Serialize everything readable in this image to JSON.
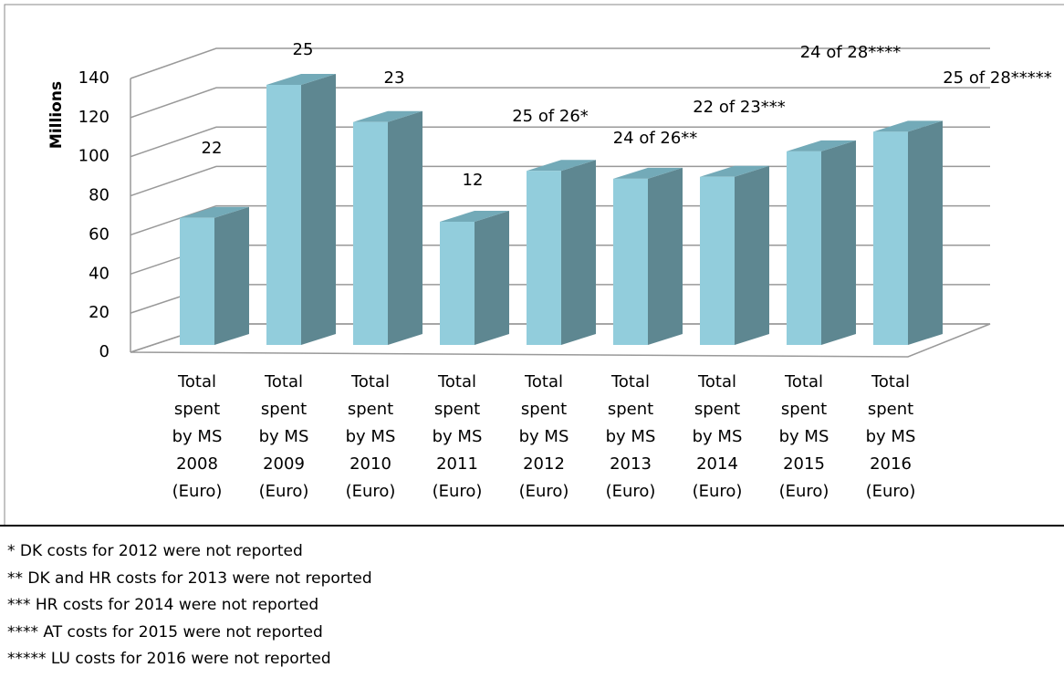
{
  "chart_data": {
    "type": "bar3d",
    "y_label": "Millions",
    "categories": [
      "Total spent by MS 2008 (Euro)",
      "Total spent by MS 2009 (Euro)",
      "Total spent by MS 2010 (Euro)",
      "Total spent by MS 2011 (Euro)",
      "Total spent by MS 2012 (Euro)",
      "Total spent by MS 2013 (Euro)",
      "Total spent by MS 2014 (Euro)",
      "Total spent by MS 2015 (Euro)",
      "Total spent by MS 2016 (Euro)"
    ],
    "values": [
      65,
      133,
      114,
      63,
      89,
      85,
      86,
      99,
      109
    ],
    "bar_annotations": [
      "22",
      "25",
      "23",
      "12",
      "25 of 26*",
      "24 of 26**",
      "22 of 23***",
      "24 of 28****",
      "25 of 28*****"
    ],
    "color": "#92cddc",
    "ylim": [
      0,
      140
    ],
    "yticks": [
      0,
      20,
      40,
      60,
      80,
      100,
      120,
      140
    ],
    "grid": true
  },
  "footnotes": [
    "* DK costs for 2012 were not reported",
    "** DK and HR costs for 2013 were not reported",
    "*** HR costs for 2014 were not reported",
    "**** AT costs for 2015 were not reported",
    "***** LU costs for 2016 were not reported"
  ]
}
